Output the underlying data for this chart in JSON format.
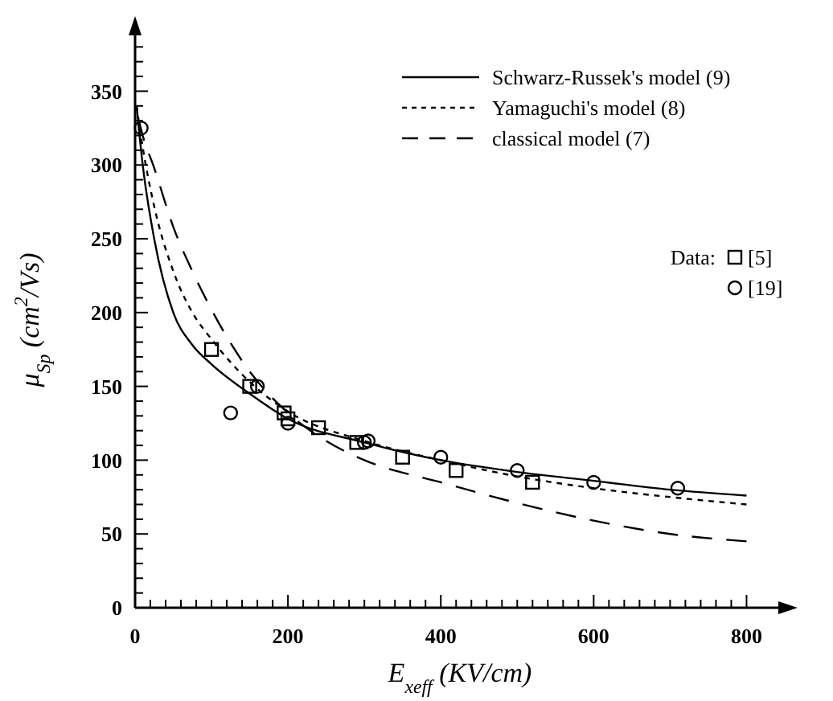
{
  "chart_data": {
    "type": "line",
    "xlabel": "E$_{xeff}$ (KV/cm)",
    "ylabel": "μ$_{Sp}$ (cm$^{2}$/Vs)",
    "xlim": [
      0,
      850
    ],
    "ylim": [
      0,
      390
    ],
    "xticks": [
      0,
      {
        "value": 20,
        "label": null
      },
      {
        "value": 40,
        "label": null
      },
      {
        "value": 60,
        "label": null
      },
      {
        "value": 80,
        "label": null
      },
      {
        "value": 100,
        "label": null
      },
      {
        "value": 120,
        "label": null
      },
      {
        "value": 140,
        "label": null
      },
      {
        "value": 160,
        "label": null
      },
      {
        "value": 180,
        "label": null
      },
      200,
      {
        "value": 220,
        "label": null
      },
      {
        "value": 240,
        "label": null
      },
      {
        "value": 260,
        "label": null
      },
      {
        "value": 280,
        "label": null
      },
      {
        "value": 300,
        "label": null
      },
      {
        "value": 320,
        "label": null
      },
      {
        "value": 340,
        "label": null
      },
      {
        "value": 360,
        "label": null
      },
      {
        "value": 380,
        "label": null
      },
      400,
      {
        "value": 420,
        "label": null
      },
      {
        "value": 440,
        "label": null
      },
      {
        "value": 460,
        "label": null
      },
      {
        "value": 480,
        "label": null
      },
      {
        "value": 500,
        "label": null
      },
      {
        "value": 520,
        "label": null
      },
      {
        "value": 540,
        "label": null
      },
      {
        "value": 560,
        "label": null
      },
      {
        "value": 580,
        "label": null
      },
      600,
      {
        "value": 620,
        "label": null
      },
      {
        "value": 640,
        "label": null
      },
      {
        "value": 660,
        "label": null
      },
      {
        "value": 680,
        "label": null
      },
      {
        "value": 700,
        "label": null
      },
      {
        "value": 720,
        "label": null
      },
      {
        "value": 740,
        "label": null
      },
      {
        "value": 760,
        "label": null
      },
      {
        "value": 780,
        "label": null
      },
      800
    ],
    "yticks": [
      0,
      {
        "value": 10,
        "label": null
      },
      {
        "value": 20,
        "label": null
      },
      {
        "value": 30,
        "label": null
      },
      {
        "value": 40,
        "label": null
      },
      50,
      {
        "value": 60,
        "label": null
      },
      {
        "value": 70,
        "label": null
      },
      {
        "value": 80,
        "label": null
      },
      {
        "value": 90,
        "label": null
      },
      100,
      {
        "value": 110,
        "label": null
      },
      {
        "value": 120,
        "label": null
      },
      {
        "value": 130,
        "label": null
      },
      {
        "value": 140,
        "label": null
      },
      150,
      {
        "value": 160,
        "label": null
      },
      {
        "value": 170,
        "label": null
      },
      {
        "value": 180,
        "label": null
      },
      {
        "value": 190,
        "label": null
      },
      200,
      {
        "value": 210,
        "label": null
      },
      {
        "value": 220,
        "label": null
      },
      {
        "value": 230,
        "label": null
      },
      {
        "value": 240,
        "label": null
      },
      250,
      {
        "value": 260,
        "label": null
      },
      {
        "value": 270,
        "label": null
      },
      {
        "value": 280,
        "label": null
      },
      {
        "value": 290,
        "label": null
      },
      300,
      {
        "value": 310,
        "label": null
      },
      {
        "value": 320,
        "label": null
      },
      {
        "value": 330,
        "label": null
      },
      {
        "value": 340,
        "label": null
      },
      350,
      {
        "value": 360,
        "label": null
      },
      {
        "value": 370,
        "label": null
      },
      {
        "value": 380,
        "label": null
      }
    ],
    "grid": false,
    "legend": "top right",
    "annotations": [
      "Data:"
    ],
    "series": [
      {
        "name": "Schwarz-Russek's model (9)",
        "color": "#000000",
        "line_style": "solid",
        "x": [
          2,
          10,
          25,
          50,
          75,
          100,
          150,
          200,
          300,
          400,
          500,
          600,
          700,
          800
        ],
        "values": [
          340,
          300,
          250,
          200,
          178,
          165,
          145,
          128,
          112,
          100,
          92,
          86,
          80,
          76
        ]
      },
      {
        "name": "Yamaguchi's model (8)",
        "color": "#000000",
        "line_style": "dotted",
        "x": [
          2,
          10,
          25,
          50,
          75,
          100,
          150,
          200,
          300,
          400,
          500,
          600,
          700,
          800
        ],
        "values": [
          340,
          312,
          272,
          228,
          200,
          182,
          153,
          133,
          113,
          100,
          89,
          81,
          75,
          70
        ]
      },
      {
        "name": "classical model (7)",
        "color": "#000000",
        "line_style": "dashed",
        "x": [
          5,
          10,
          25,
          50,
          75,
          100,
          150,
          200,
          250,
          300,
          400,
          500,
          600,
          700,
          800
        ],
        "values": [
          330,
          320,
          298,
          258,
          228,
          202,
          160,
          132,
          113,
          100,
          85,
          71,
          59,
          50,
          45
        ]
      },
      {
        "name": "[5]",
        "type": "scatter",
        "color": "#000000",
        "marker": "square",
        "x": [
          100,
          150,
          195,
          200,
          240,
          290,
          350,
          420,
          520
        ],
        "values": [
          175,
          150,
          132,
          128,
          122,
          112,
          102,
          93,
          85
        ]
      },
      {
        "name": "[19]",
        "type": "scatter",
        "color": "#000000",
        "marker": "circle",
        "x": [
          8,
          125,
          160,
          200,
          300,
          305,
          400,
          500,
          600,
          710
        ],
        "values": [
          325,
          132,
          150,
          125,
          112,
          113,
          102,
          93,
          85,
          81
        ]
      }
    ]
  }
}
